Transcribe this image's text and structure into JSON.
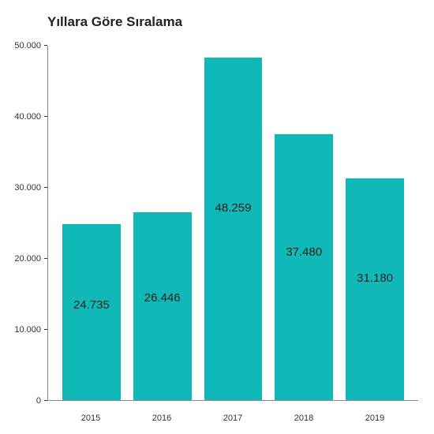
{
  "chart": {
    "type": "bar",
    "title": "Yıllara Göre Sıralama",
    "title_fontsize": 17,
    "title_color": "#222222",
    "background_color": "#ffffff",
    "bar_color": "#11b8b8",
    "label_color": "#222222",
    "label_fontsize": 15,
    "axis_color": "#888888",
    "tick_color": "#333333",
    "tick_fontsize": 11,
    "ylim": [
      0,
      50000
    ],
    "ytick_step": 10000,
    "yticks": [
      {
        "value": 0,
        "label": "0"
      },
      {
        "value": 10000,
        "label": "10.000"
      },
      {
        "value": 20000,
        "label": "20.000"
      },
      {
        "value": 30000,
        "label": "30.000"
      },
      {
        "value": 40000,
        "label": "40.000"
      },
      {
        "value": 50000,
        "label": "50.000"
      }
    ],
    "categories": [
      "2015",
      "2016",
      "2017",
      "2018",
      "2019"
    ],
    "values": [
      24735,
      26446,
      48259,
      37480,
      31180
    ],
    "value_labels": [
      "24.735",
      "26.446",
      "48.259",
      "37.480",
      "31.180"
    ],
    "bar_width_ratio": 0.82
  }
}
